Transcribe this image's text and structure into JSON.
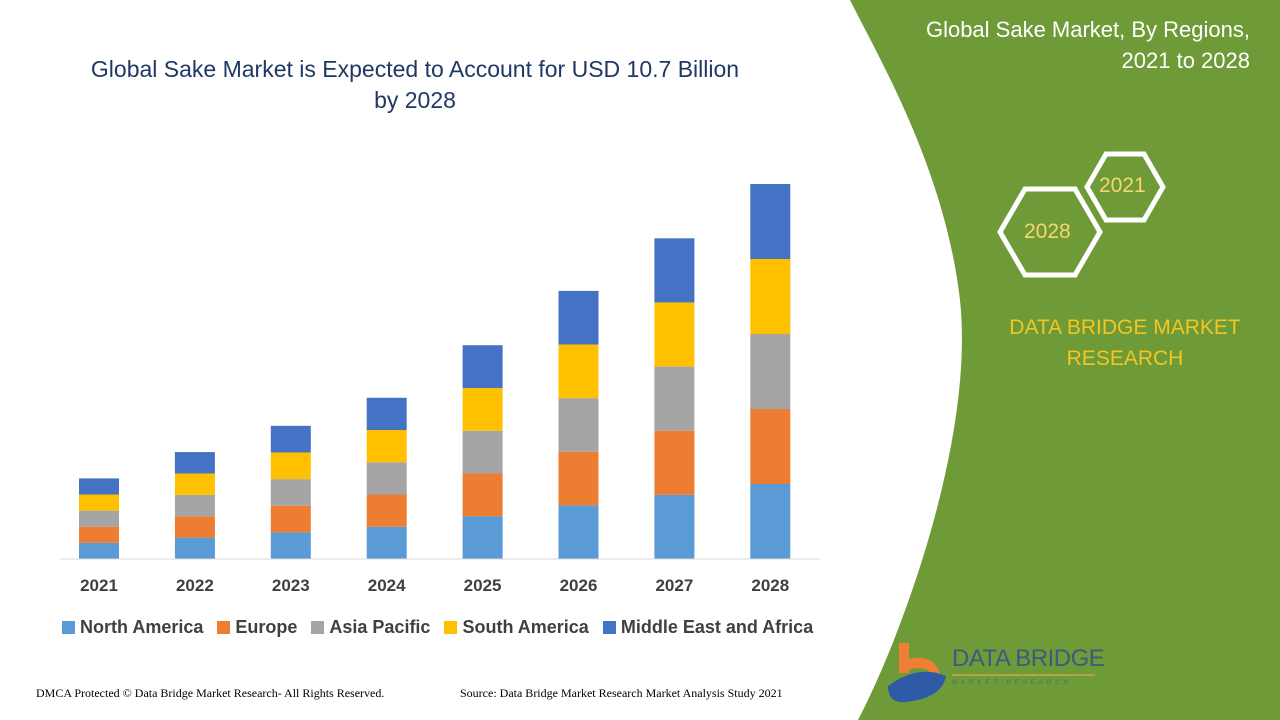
{
  "title": "Global Sake Market is Expected to Account for USD 10.7 Billion by 2028",
  "title_line1": "Global Sake Market is Expected to Account for USD 10.7 Billion",
  "title_line2": "by 2028",
  "side_panel": {
    "title_line1": "Global Sake Market, By Regions,",
    "title_line2": "2021 to 2028",
    "hex_years": [
      "2021",
      "2028"
    ],
    "brand_line1": "DATA BRIDGE MARKET",
    "brand_line2": "RESEARCH",
    "color": "#6e9b37"
  },
  "logo": {
    "name": "DATA BRIDGE",
    "sub": "MARKET RESEARCH"
  },
  "footer": {
    "left": "DMCA Protected © Data Bridge Market Research- All Rights Reserved.",
    "right": "Source: Data Bridge Market Research Market Analysis Study 2021"
  },
  "chart_data": {
    "type": "bar",
    "stacked": true,
    "title": "Global Sake Market is Expected to Account for USD 10.7 Billion by 2028",
    "categories": [
      "2021",
      "2022",
      "2023",
      "2024",
      "2025",
      "2026",
      "2027",
      "2028"
    ],
    "ylim": [
      0,
      10.7
    ],
    "grid": false,
    "legend": "bottom",
    "series": [
      {
        "name": "North America",
        "color": "#5b9bd5",
        "values": [
          0.46,
          0.61,
          0.76,
          0.92,
          1.22,
          1.53,
          1.83,
          2.14
        ]
      },
      {
        "name": "Europe",
        "color": "#ed7d31",
        "values": [
          0.46,
          0.61,
          0.76,
          0.92,
          1.22,
          1.53,
          1.83,
          2.14
        ]
      },
      {
        "name": "Asia Pacific",
        "color": "#a5a5a5",
        "values": [
          0.46,
          0.61,
          0.76,
          0.92,
          1.22,
          1.53,
          1.83,
          2.14
        ]
      },
      {
        "name": "South America",
        "color": "#ffc000",
        "values": [
          0.46,
          0.61,
          0.76,
          0.92,
          1.22,
          1.53,
          1.83,
          2.14
        ]
      },
      {
        "name": "Middle East and Africa",
        "color": "#4472c4",
        "values": [
          0.46,
          0.61,
          0.76,
          0.92,
          1.22,
          1.53,
          1.83,
          2.14
        ]
      }
    ]
  }
}
